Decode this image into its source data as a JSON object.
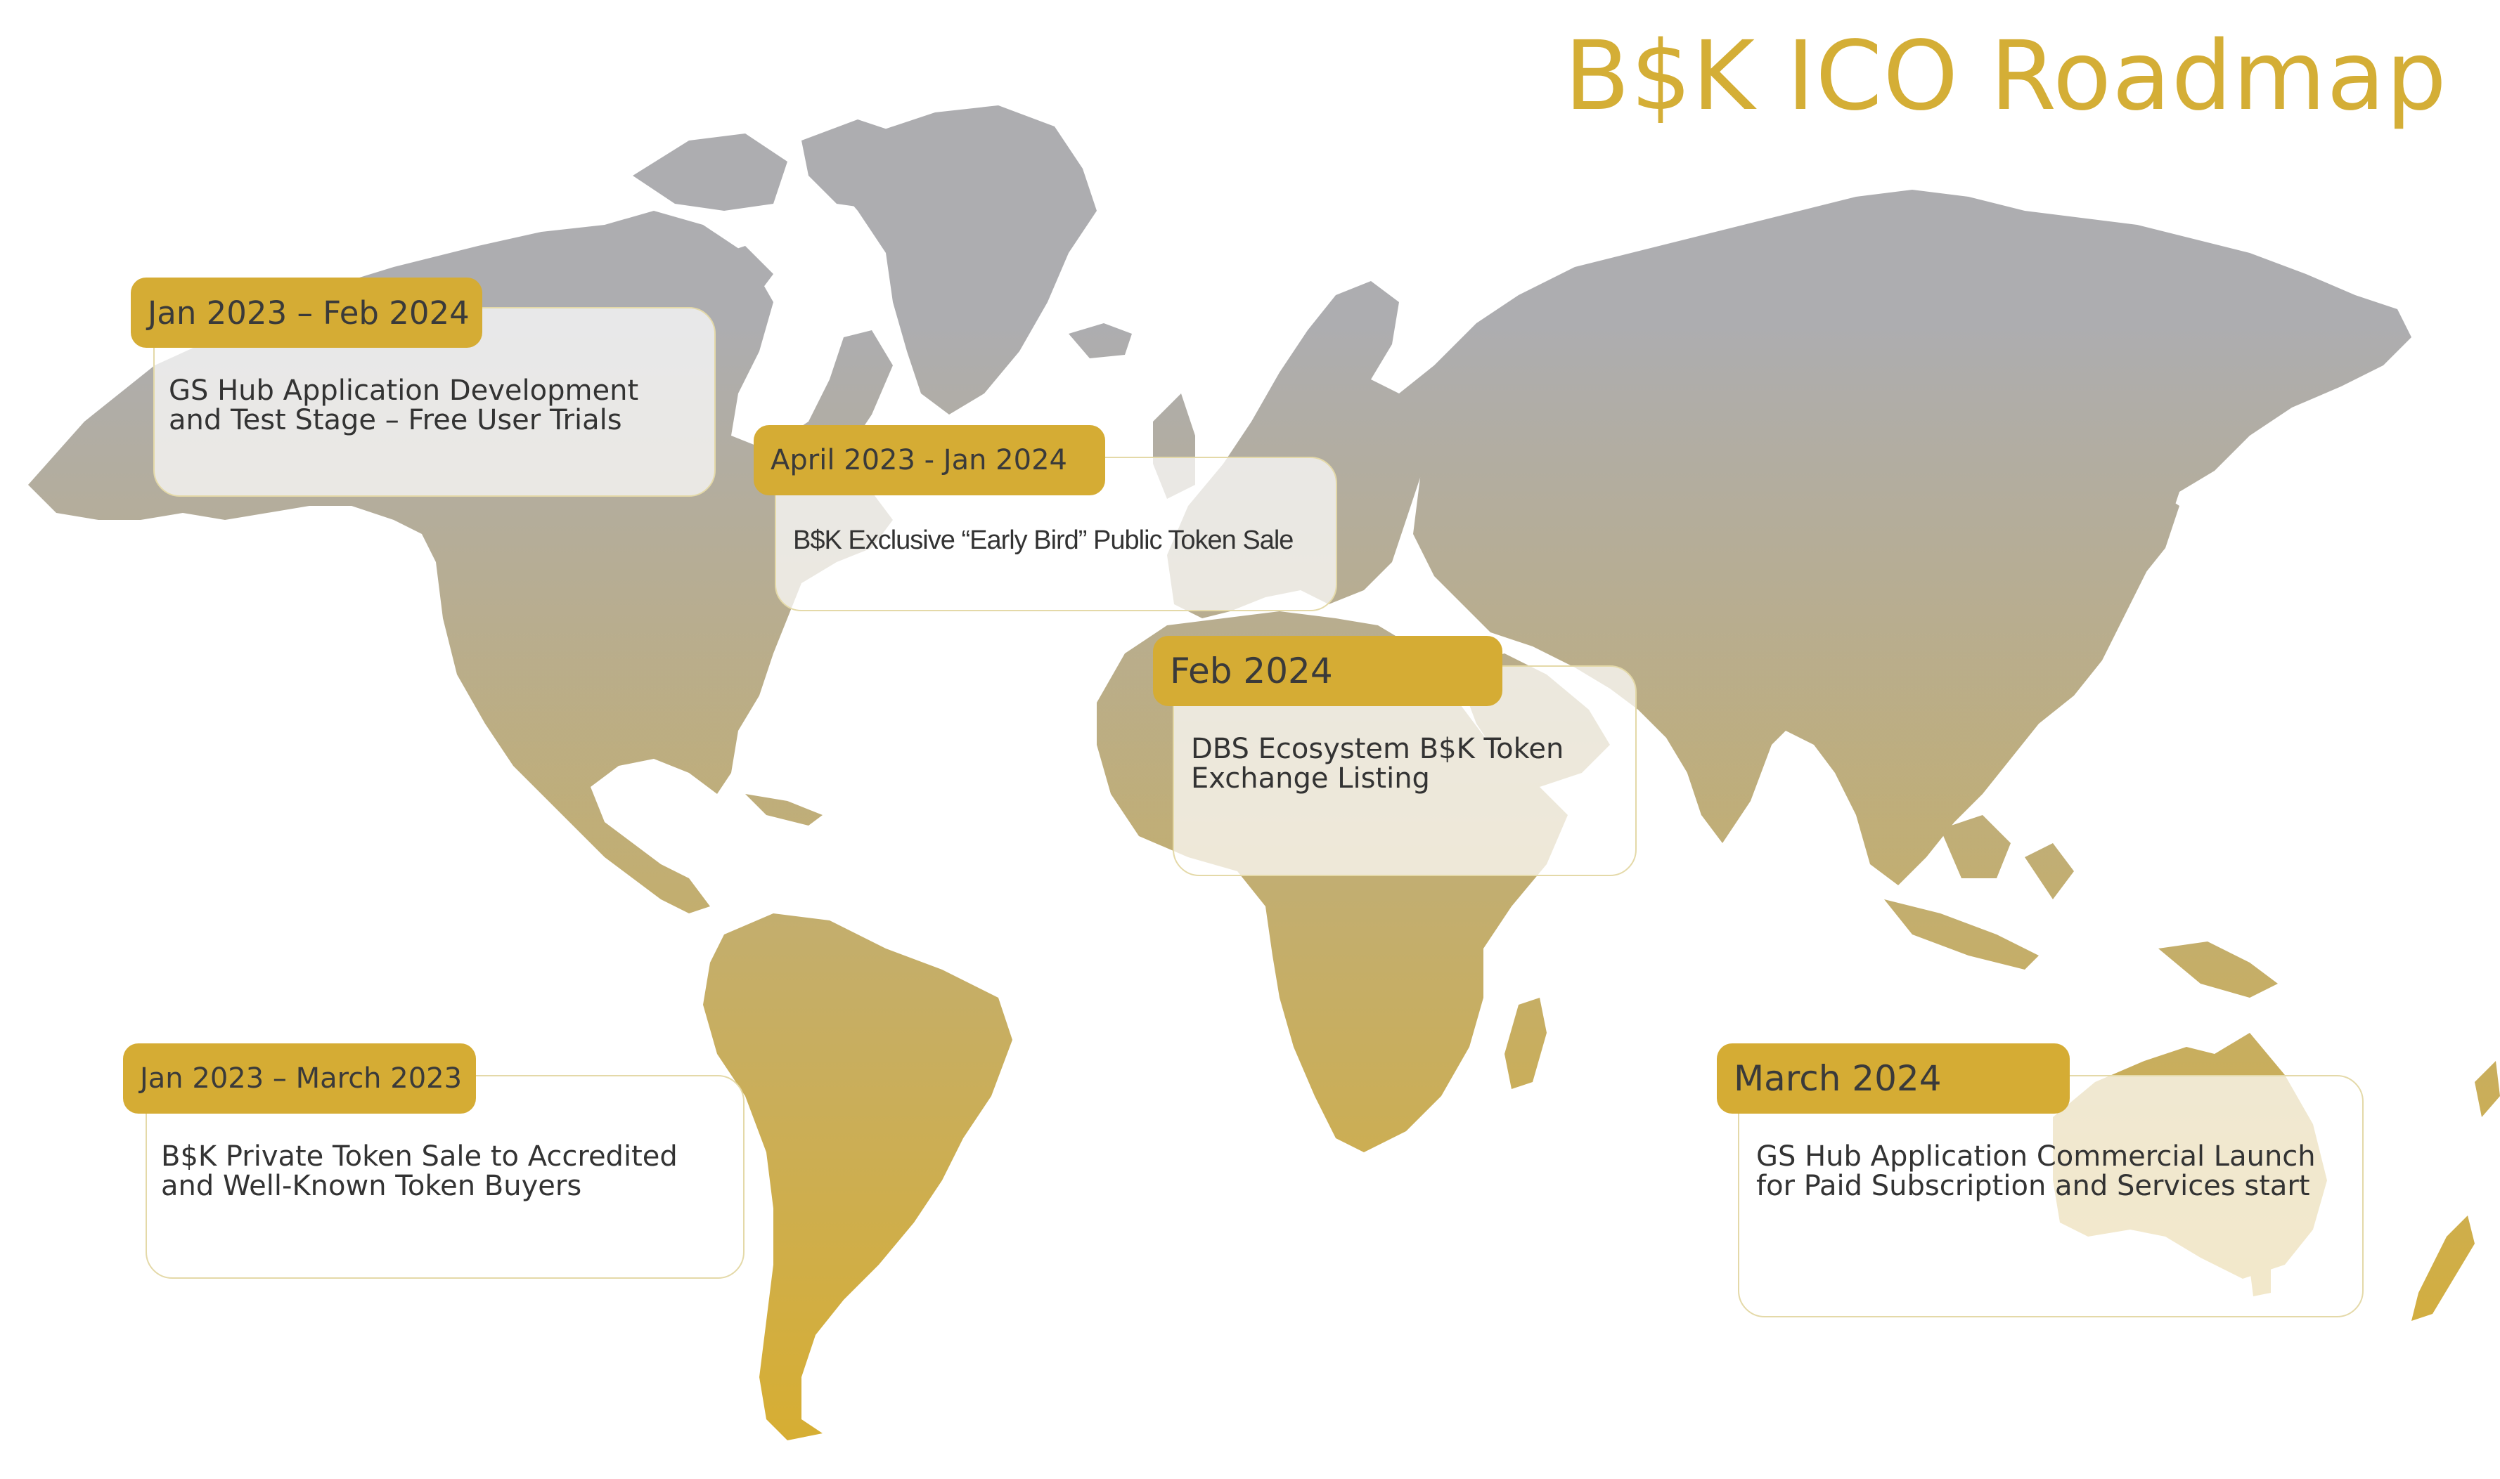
{
  "page": {
    "title": "B$K ICO Roadmap",
    "title_color": "#d4ae36"
  },
  "colors": {
    "map_top": "#adadb0",
    "map_bottom": "#d7ae32",
    "tab_fill": "#d5ac34",
    "card_border": "#e4d9a8",
    "tab_text": "#3a3a3a",
    "desc_text": "#333333"
  },
  "milestones": [
    {
      "id": "jan2023-feb2024",
      "date": "Jan 2023 – Feb 2024",
      "description_lines": [
        "GS Hub Application Development",
        "and Test Stage – Free User Trials"
      ]
    },
    {
      "id": "apr2023-jan2024",
      "date": "April 2023 - Jan 2024",
      "description_lines": [
        "B$K Exclusive “Early Bird” Public Token Sale"
      ]
    },
    {
      "id": "feb2024",
      "date": "Feb 2024",
      "description_lines": [
        "DBS Ecosystem B$K Token",
        "Exchange Listing"
      ]
    },
    {
      "id": "jan2023-mar2023",
      "date": "Jan 2023 – March 2023",
      "description_lines": [
        "B$K Private Token Sale to Accredited",
        "and Well-Known Token Buyers"
      ]
    },
    {
      "id": "mar2024",
      "date": "March 2024",
      "description_lines": [
        "GS Hub Application Commercial Launch",
        "for Paid Subscription and Services start"
      ]
    }
  ]
}
